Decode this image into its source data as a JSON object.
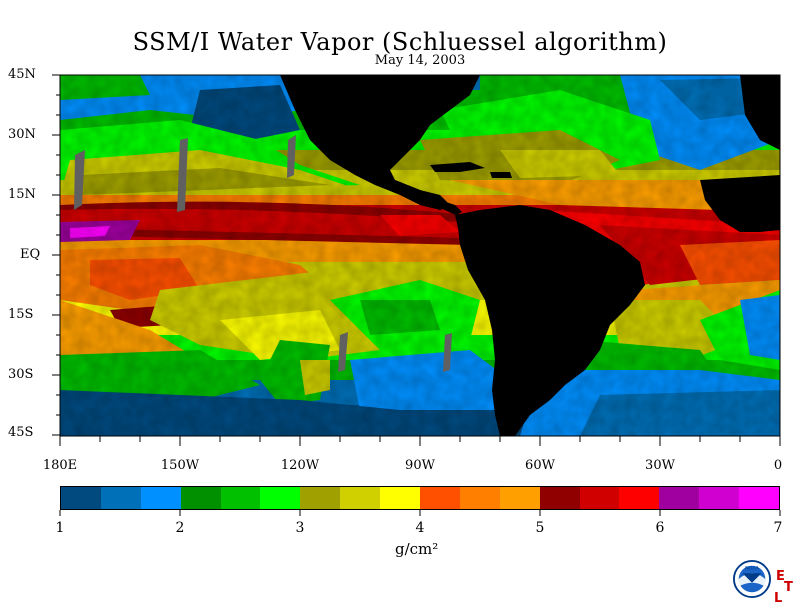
{
  "title": "SSM/I Water Vapor (Schluessel algorithm)",
  "subtitle": "May 14, 2003",
  "lat_labels": [
    "45N",
    "30N",
    "15N",
    "EQ",
    "15S",
    "30S",
    "45S"
  ],
  "lon_labels": [
    "180E",
    "150W",
    "120W",
    "90W",
    "60W",
    "30W",
    "0"
  ],
  "colorbar": {
    "ticks": [
      "1",
      "2",
      "3",
      "4",
      "5",
      "6",
      "7"
    ],
    "units": "g/cm²",
    "colors": [
      "#004a80",
      "#0070b8",
      "#0090ff",
      "#009000",
      "#00c000",
      "#00ff00",
      "#a0a000",
      "#d0d000",
      "#ffff00",
      "#ff5000",
      "#ff8000",
      "#ffa000",
      "#900000",
      "#d00000",
      "#ff0000",
      "#a000a0",
      "#d000d0",
      "#ff00ff"
    ]
  },
  "logos": {
    "noaa": "NOAA",
    "etl_e": "E",
    "etl_t": "T",
    "etl_l": "L"
  },
  "colors": {
    "land": "#000000",
    "background": "#ffffff"
  }
}
